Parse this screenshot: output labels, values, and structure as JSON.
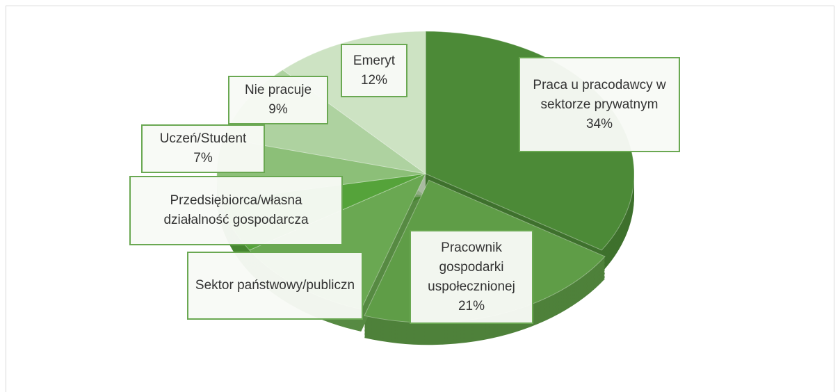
{
  "chart_data": {
    "type": "pie3d",
    "categories": [
      "Praca u pracodawcy w sektorze prywatnym",
      "Pracownik gospodarki uspołecznionej",
      "Sektor państwowy/publiczn",
      "Przedsiębiorca/własna działalność gospodarcza",
      "Uczeń/Student",
      "Nie pracuje",
      "Emeryt"
    ],
    "values": [
      34,
      21,
      11,
      6,
      7,
      9,
      12
    ],
    "value_labels": [
      "34%",
      "21%",
      null,
      null,
      "7%",
      "9%",
      "12%"
    ],
    "colors": [
      "#4c8a37",
      "#5f9d47",
      "#6aa852",
      "#55a33a",
      "#8cbf78",
      "#aed2a0",
      "#cde3c3"
    ]
  }
}
